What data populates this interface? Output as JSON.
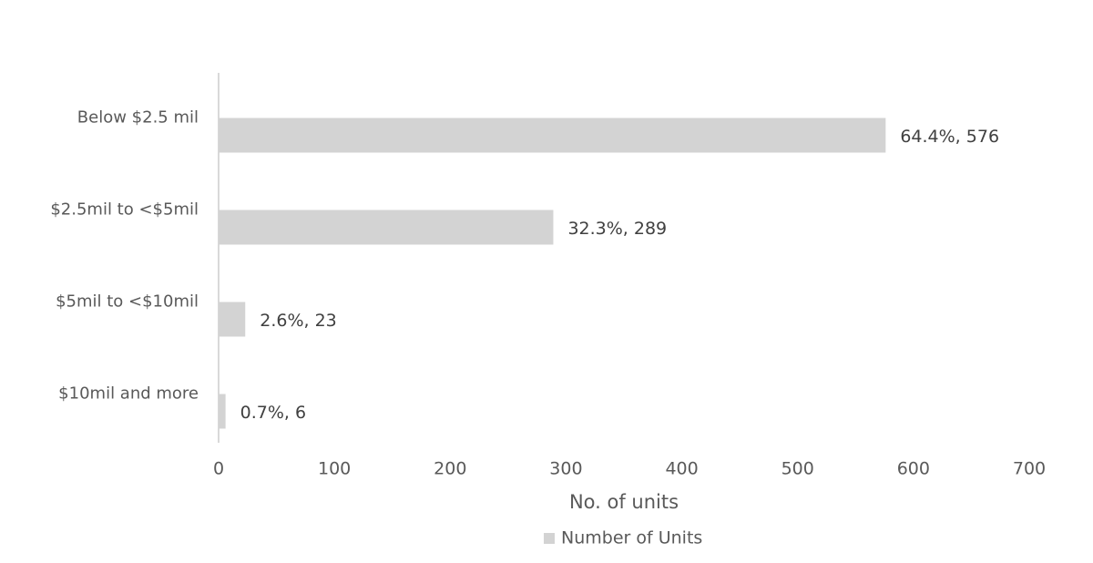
{
  "chart_data": {
    "type": "bar",
    "orientation": "horizontal",
    "categories": [
      "Below $2.5 mil",
      "$2.5mil to <$5mil",
      "$5mil to <$10mil",
      "$10mil and more"
    ],
    "series": [
      {
        "name": "Number of Units",
        "color": "#d3d3d3",
        "values": [
          576,
          289,
          23,
          6
        ],
        "value_labels": [
          "64.4%, 576",
          "32.3%, 289",
          "2.6%, 23",
          "0.7%, 6"
        ]
      }
    ],
    "x_label": "No. of units",
    "xlim": [
      0,
      700
    ],
    "xticks": [
      0,
      100,
      200,
      300,
      400,
      500,
      600,
      700
    ],
    "grid": false,
    "legend": "bottom"
  }
}
